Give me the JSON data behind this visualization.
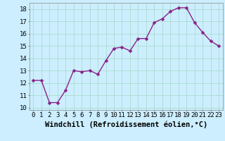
{
  "x": [
    0,
    1,
    2,
    3,
    4,
    5,
    6,
    7,
    8,
    9,
    10,
    11,
    12,
    13,
    14,
    15,
    16,
    17,
    18,
    19,
    20,
    21,
    22,
    23
  ],
  "y": [
    12.2,
    12.2,
    10.4,
    10.4,
    11.4,
    13.0,
    12.9,
    13.0,
    12.7,
    13.8,
    14.8,
    14.9,
    14.6,
    15.6,
    15.6,
    16.9,
    17.2,
    17.8,
    18.1,
    18.1,
    16.9,
    16.1,
    15.4,
    15.0
  ],
  "line_color": "#882288",
  "marker_color": "#882288",
  "bg_color": "#cceeff",
  "grid_color": "#aaddcc",
  "xlabel": "Windchill (Refroidissement éolien,°C)",
  "xlim": [
    -0.5,
    23.5
  ],
  "ylim": [
    9.8,
    18.5
  ],
  "yticks": [
    10,
    11,
    12,
    13,
    14,
    15,
    16,
    17,
    18
  ],
  "xticks": [
    0,
    1,
    2,
    3,
    4,
    5,
    6,
    7,
    8,
    9,
    10,
    11,
    12,
    13,
    14,
    15,
    16,
    17,
    18,
    19,
    20,
    21,
    22,
    23
  ],
  "tick_label_fontsize": 6.5,
  "xlabel_fontsize": 7.5,
  "marker_size": 2.5,
  "line_width": 1.0
}
